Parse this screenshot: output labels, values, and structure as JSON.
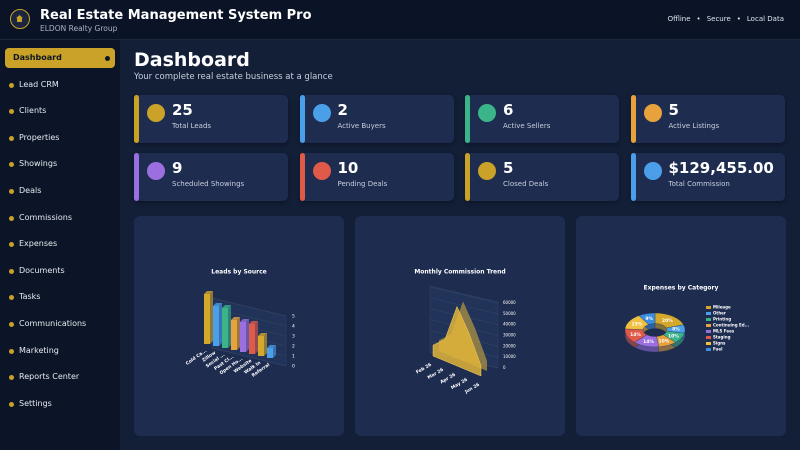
{
  "header": {
    "title": "Real Estate Management System Pro",
    "subtitle": "ELDON Realty Group",
    "status": [
      "Offline",
      "Secure",
      "Local Data"
    ]
  },
  "sidebar": {
    "items": [
      "Dashboard",
      "Lead CRM",
      "Clients",
      "Properties",
      "Showings",
      "Deals",
      "Commissions",
      "Expenses",
      "Documents",
      "Tasks",
      "Communications",
      "Marketing",
      "Reports Center",
      "Settings"
    ],
    "active": 0
  },
  "main": {
    "title": "Dashboard",
    "subtitle": "Your complete real estate business at a glance"
  },
  "stats": [
    {
      "value": 25,
      "label": "Total Leads",
      "color": "#c9a227"
    },
    {
      "value": 2,
      "label": "Active Buyers",
      "color": "#4a9fe8"
    },
    {
      "value": 6,
      "label": "Active Sellers",
      "color": "#3cb48a"
    },
    {
      "value": 5,
      "label": "Active Listings",
      "color": "#e8a23c"
    },
    {
      "value": 9,
      "label": "Scheduled Showings",
      "color": "#9b6fe0"
    },
    {
      "value": 10,
      "label": "Pending Deals",
      "color": "#e05a4a"
    },
    {
      "value": 5,
      "label": "Closed Deals",
      "color": "#c9a227"
    },
    {
      "value": "$129,455.00",
      "label": "Total Commission",
      "color": "#4a9fe8"
    }
  ],
  "chart_data": [
    {
      "type": "bar3d",
      "title": "Leads by Source",
      "categories": [
        "Cold Ca...",
        "Zillow",
        "Social ...",
        "Past Cl...",
        "Open Ho...",
        "Website",
        "Walk In",
        "Referral"
      ],
      "values": [
        5,
        4,
        4,
        3,
        3,
        3,
        2,
        1
      ],
      "colors": [
        "#d4a82a",
        "#4a9fe8",
        "#3cb48a",
        "#e8a23c",
        "#9b6fe0",
        "#e05a4a",
        "#d4a82a",
        "#4a9fe8"
      ],
      "ylim": [
        0,
        5
      ],
      "yticks": [
        0,
        1,
        2,
        3,
        4,
        5
      ]
    },
    {
      "type": "area3d",
      "title": "Monthly Commission Trend",
      "categories": [
        "Feb 26",
        "Mar 26",
        "Apr 26",
        "May 26",
        "Jun 26"
      ],
      "values": [
        10000,
        20000,
        55000,
        35000,
        9455
      ],
      "color": "#e0b53a",
      "ylim": [
        0,
        60000
      ],
      "yticks": [
        0,
        10000,
        20000,
        30000,
        40000,
        50000,
        60000
      ]
    },
    {
      "type": "donut3d",
      "title": "Expenses by Category",
      "categories": [
        "Mileage",
        "Other",
        "Printing",
        "Continuing Ed...",
        "MLS Fees",
        "Staging",
        "Signs",
        "Fuel"
      ],
      "values": [
        20,
        8,
        10,
        10,
        14,
        14,
        15,
        9
      ],
      "value_labels": [
        "20%",
        "8%",
        "10%",
        "10%",
        "14%",
        "14%",
        "15%",
        "9%"
      ],
      "colors": [
        "#d4a82a",
        "#4a9fe8",
        "#3cb48a",
        "#e8a23c",
        "#9b6fe0",
        "#e05a4a",
        "#f0c040",
        "#3a8ee0"
      ]
    }
  ]
}
